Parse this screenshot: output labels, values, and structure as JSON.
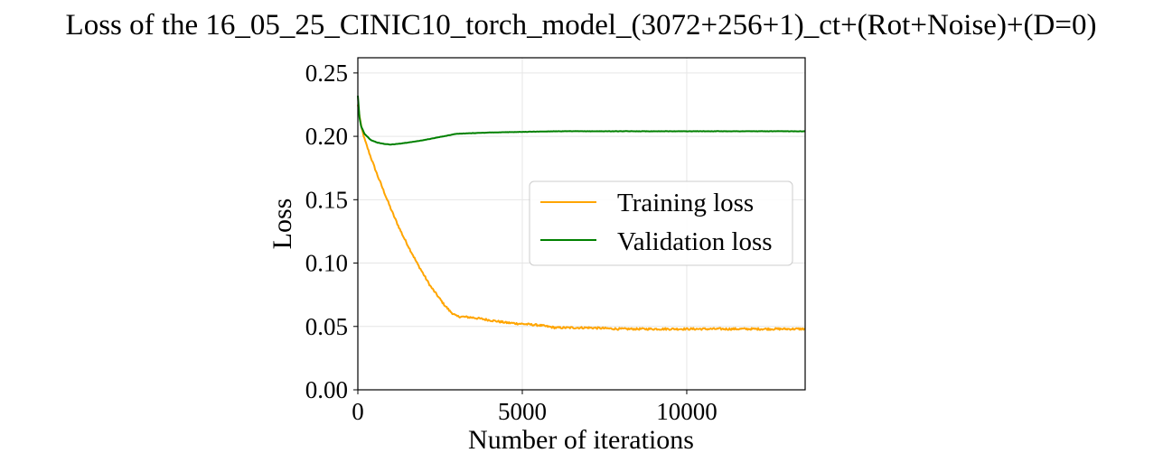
{
  "chart_data": {
    "type": "line",
    "title": "Loss of the 16_05_25_CINIC10_torch_model_(3072+256+1)_ct+(Rot+Noise)+(D=0)",
    "xlabel": "Number of iterations",
    "ylabel": "Loss",
    "xlim": [
      0,
      13600
    ],
    "ylim": [
      0,
      0.262
    ],
    "xticks": [
      0,
      5000,
      10000
    ],
    "xtick_labels": [
      "0",
      "5000",
      "10000"
    ],
    "yticks": [
      0.0,
      0.05,
      0.1,
      0.15,
      0.2,
      0.25
    ],
    "ytick_labels": [
      "0.00",
      "0.05",
      "0.10",
      "0.15",
      "0.20",
      "0.25"
    ],
    "grid": true,
    "legend_position": "center-right",
    "series": [
      {
        "name": "Training loss",
        "color": "#FFA500",
        "x": [
          0,
          100,
          200,
          400,
          600,
          800,
          1000,
          1200,
          1400,
          1600,
          1800,
          2000,
          2200,
          2400,
          2600,
          2800,
          3000,
          3500,
          4000,
          4500,
          5000,
          5500,
          6000,
          7000,
          8000,
          9000,
          10000,
          11000,
          12000,
          13000,
          13600
        ],
        "values": [
          0.225,
          0.208,
          0.198,
          0.183,
          0.169,
          0.156,
          0.143,
          0.131,
          0.12,
          0.11,
          0.1,
          0.091,
          0.082,
          0.075,
          0.068,
          0.062,
          0.058,
          0.057,
          0.055,
          0.053,
          0.052,
          0.051,
          0.049,
          0.049,
          0.048,
          0.048,
          0.048,
          0.048,
          0.048,
          0.048,
          0.048
        ]
      },
      {
        "name": "Validation loss",
        "color": "#008000",
        "x": [
          0,
          50,
          100,
          200,
          400,
          600,
          800,
          1000,
          1200,
          1500,
          2000,
          2500,
          3000,
          4000,
          5000,
          6000,
          7000,
          8000,
          9000,
          10000,
          11000,
          12000,
          13000,
          13600
        ],
        "values": [
          0.232,
          0.215,
          0.208,
          0.202,
          0.197,
          0.195,
          0.194,
          0.1935,
          0.194,
          0.195,
          0.197,
          0.1995,
          0.202,
          0.203,
          0.2035,
          0.204,
          0.204,
          0.204,
          0.204,
          0.204,
          0.204,
          0.204,
          0.204,
          0.204
        ]
      }
    ]
  }
}
